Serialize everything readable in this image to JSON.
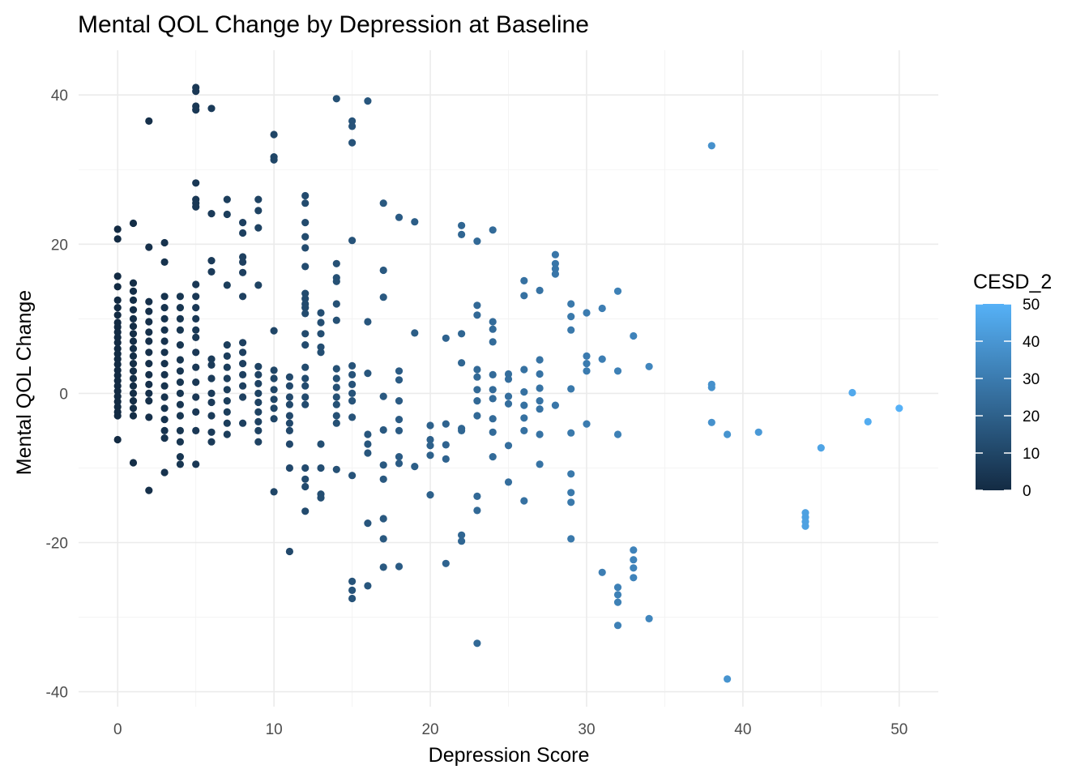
{
  "chart_data": {
    "type": "scatter",
    "title": "Mental QOL Change by Depression at Baseline",
    "xlabel": "Depression Score",
    "ylabel": "Mental QOL Change",
    "xlim": [
      -2.5,
      52.5
    ],
    "ylim": [
      -42,
      46
    ],
    "x_ticks": [
      0,
      10,
      20,
      30,
      40,
      50
    ],
    "x_tick_labels": [
      "0",
      "10",
      "20",
      "30",
      "40",
      "50"
    ],
    "y_ticks": [
      -40,
      -20,
      0,
      20,
      40
    ],
    "y_tick_labels": [
      "-40",
      "-20",
      "0",
      "20",
      "40"
    ],
    "grid": true,
    "legend": {
      "title": "CESD_2",
      "position": "right",
      "type": "colorbar",
      "range": [
        0,
        50
      ],
      "ticks": [
        0,
        10,
        20,
        30,
        40,
        50
      ],
      "tick_labels": [
        "0",
        "10",
        "20",
        "30",
        "40",
        "50"
      ],
      "color_low": "#132B43",
      "color_high": "#56B1F7"
    },
    "color_variable": "CESD_2",
    "points": [
      [
        0,
        22.0
      ],
      [
        0,
        20.7
      ],
      [
        0,
        15.7
      ],
      [
        0,
        14.3
      ],
      [
        0,
        12.5
      ],
      [
        0,
        11.5
      ],
      [
        0,
        10.5
      ],
      [
        0,
        9.5
      ],
      [
        0,
        8.9
      ],
      [
        0,
        8.2
      ],
      [
        0,
        7.5
      ],
      [
        0,
        6.8
      ],
      [
        0,
        6.0
      ],
      [
        0,
        5.3
      ],
      [
        0,
        4.6
      ],
      [
        0,
        3.9
      ],
      [
        0,
        3.1
      ],
      [
        0,
        2.4
      ],
      [
        0,
        1.7
      ],
      [
        0,
        1.0
      ],
      [
        0,
        0.3
      ],
      [
        0,
        -0.4
      ],
      [
        0,
        -1.1
      ],
      [
        0,
        -1.8
      ],
      [
        0,
        -2.5
      ],
      [
        0,
        -3.0
      ],
      [
        0,
        -6.2
      ],
      [
        1,
        22.8
      ],
      [
        1,
        14.8
      ],
      [
        1,
        13.7
      ],
      [
        1,
        12.5
      ],
      [
        1,
        11.2
      ],
      [
        1,
        10.0
      ],
      [
        1,
        9.0
      ],
      [
        1,
        8.0
      ],
      [
        1,
        7.0
      ],
      [
        1,
        6.0
      ],
      [
        1,
        5.0
      ],
      [
        1,
        4.0
      ],
      [
        1,
        3.0
      ],
      [
        1,
        2.0
      ],
      [
        1,
        1.0
      ],
      [
        1,
        0.0
      ],
      [
        1,
        -1.0
      ],
      [
        1,
        -2.0
      ],
      [
        1,
        -3.0
      ],
      [
        1,
        -9.3
      ],
      [
        2,
        36.5
      ],
      [
        2,
        19.6
      ],
      [
        2,
        12.3
      ],
      [
        2,
        11.0
      ],
      [
        2,
        9.6
      ],
      [
        2,
        8.2
      ],
      [
        2,
        7.0
      ],
      [
        2,
        5.5
      ],
      [
        2,
        4.0
      ],
      [
        2,
        2.5
      ],
      [
        2,
        1.2
      ],
      [
        2,
        0.0
      ],
      [
        2,
        -1.0
      ],
      [
        2,
        -3.2
      ],
      [
        2,
        -13.0
      ],
      [
        3,
        20.2
      ],
      [
        3,
        17.6
      ],
      [
        3,
        13.0
      ],
      [
        3,
        11.5
      ],
      [
        3,
        10.0
      ],
      [
        3,
        8.5
      ],
      [
        3,
        7.0
      ],
      [
        3,
        5.5
      ],
      [
        3,
        4.0
      ],
      [
        3,
        2.5
      ],
      [
        3,
        1.0
      ],
      [
        3,
        -0.5
      ],
      [
        3,
        -2.0
      ],
      [
        3,
        -3.5
      ],
      [
        3,
        -5.0
      ],
      [
        3,
        -6.0
      ],
      [
        3,
        -10.6
      ],
      [
        4,
        13.0
      ],
      [
        4,
        11.5
      ],
      [
        4,
        10.0
      ],
      [
        4,
        8.5
      ],
      [
        4,
        6.5
      ],
      [
        4,
        4.5
      ],
      [
        4,
        3.0
      ],
      [
        4,
        1.5
      ],
      [
        4,
        0.0
      ],
      [
        4,
        -1.5
      ],
      [
        4,
        -3.0
      ],
      [
        4,
        -5.0
      ],
      [
        4,
        -6.5
      ],
      [
        4,
        -8.5
      ],
      [
        4,
        -9.5
      ],
      [
        5,
        41.0
      ],
      [
        5,
        40.5
      ],
      [
        5,
        38.5
      ],
      [
        5,
        38.0
      ],
      [
        5,
        28.2
      ],
      [
        5,
        26.0
      ],
      [
        5,
        25.5
      ],
      [
        5,
        25.0
      ],
      [
        5,
        14.6
      ],
      [
        5,
        13.0
      ],
      [
        5,
        11.5
      ],
      [
        5,
        10.0
      ],
      [
        5,
        8.5
      ],
      [
        5,
        7.5
      ],
      [
        5,
        5.5
      ],
      [
        5,
        3.5
      ],
      [
        5,
        1.5
      ],
      [
        5,
        -0.5
      ],
      [
        5,
        -2.5
      ],
      [
        5,
        -5.0
      ],
      [
        5,
        -9.5
      ],
      [
        6,
        38.2
      ],
      [
        6,
        24.1
      ],
      [
        6,
        17.8
      ],
      [
        6,
        16.3
      ],
      [
        6,
        4.6
      ],
      [
        6,
        3.8
      ],
      [
        6,
        2.0
      ],
      [
        6,
        0.0
      ],
      [
        6,
        -1.2
      ],
      [
        6,
        -3.0
      ],
      [
        6,
        -5.2
      ],
      [
        6,
        -6.5
      ],
      [
        7,
        26.0
      ],
      [
        7,
        24.0
      ],
      [
        7,
        14.5
      ],
      [
        7,
        6.5
      ],
      [
        7,
        5.0
      ],
      [
        7,
        3.5
      ],
      [
        7,
        2.0
      ],
      [
        7,
        0.5
      ],
      [
        7,
        -1.0
      ],
      [
        7,
        -2.5
      ],
      [
        7,
        -4.0
      ],
      [
        7,
        -5.5
      ],
      [
        8,
        22.9
      ],
      [
        8,
        21.5
      ],
      [
        8,
        18.3
      ],
      [
        8,
        17.6
      ],
      [
        8,
        16.2
      ],
      [
        8,
        13.0
      ],
      [
        8,
        6.8
      ],
      [
        8,
        5.5
      ],
      [
        8,
        4.0
      ],
      [
        8,
        2.5
      ],
      [
        8,
        1.0
      ],
      [
        8,
        -0.5
      ],
      [
        8,
        -4.0
      ],
      [
        9,
        26.0
      ],
      [
        9,
        24.5
      ],
      [
        9,
        22.2
      ],
      [
        9,
        14.5
      ],
      [
        9,
        3.6
      ],
      [
        9,
        2.5
      ],
      [
        9,
        1.3
      ],
      [
        9,
        0.0
      ],
      [
        9,
        -1.2
      ],
      [
        9,
        -2.5
      ],
      [
        9,
        -3.8
      ],
      [
        9,
        -5.0
      ],
      [
        9,
        -6.5
      ],
      [
        10,
        34.7
      ],
      [
        10,
        31.7
      ],
      [
        10,
        31.3
      ],
      [
        10,
        8.4
      ],
      [
        10,
        3.1
      ],
      [
        10,
        2.0
      ],
      [
        10,
        0.5
      ],
      [
        10,
        -0.8
      ],
      [
        10,
        -2.0
      ],
      [
        10,
        -3.4
      ],
      [
        10,
        -13.2
      ],
      [
        11,
        2.2
      ],
      [
        11,
        1.0
      ],
      [
        11,
        -0.5
      ],
      [
        11,
        -1.5
      ],
      [
        11,
        -3.0
      ],
      [
        11,
        -4.0
      ],
      [
        11,
        -5.0
      ],
      [
        11,
        -6.8
      ],
      [
        11,
        -10.0
      ],
      [
        11,
        -21.2
      ],
      [
        12,
        26.5
      ],
      [
        12,
        25.5
      ],
      [
        12,
        22.9
      ],
      [
        12,
        21.0
      ],
      [
        12,
        19.5
      ],
      [
        12,
        17.0
      ],
      [
        12,
        13.4
      ],
      [
        12,
        12.7
      ],
      [
        12,
        12.0
      ],
      [
        12,
        11.5
      ],
      [
        12,
        10.7
      ],
      [
        12,
        8.0
      ],
      [
        12,
        6.5
      ],
      [
        12,
        3.5
      ],
      [
        12,
        2.0
      ],
      [
        12,
        1.0
      ],
      [
        12,
        -0.5
      ],
      [
        12,
        -1.5
      ],
      [
        12,
        -10.0
      ],
      [
        12,
        -11.5
      ],
      [
        12,
        -12.5
      ],
      [
        12,
        -15.8
      ],
      [
        13,
        10.8
      ],
      [
        13,
        9.5
      ],
      [
        13,
        8.0
      ],
      [
        13,
        6.2
      ],
      [
        13,
        5.5
      ],
      [
        13,
        -6.8
      ],
      [
        13,
        -10.0
      ],
      [
        13,
        -13.5
      ],
      [
        13,
        -14.0
      ],
      [
        14,
        39.5
      ],
      [
        14,
        17.4
      ],
      [
        14,
        15.5
      ],
      [
        14,
        15.0
      ],
      [
        14,
        12.0
      ],
      [
        14,
        9.8
      ],
      [
        14,
        3.3
      ],
      [
        14,
        2.0
      ],
      [
        14,
        0.8
      ],
      [
        14,
        -0.5
      ],
      [
        14,
        -1.5
      ],
      [
        14,
        -3.0
      ],
      [
        14,
        -4.0
      ],
      [
        14,
        -10.2
      ],
      [
        15,
        36.5
      ],
      [
        15,
        35.8
      ],
      [
        15,
        33.6
      ],
      [
        15,
        20.5
      ],
      [
        15,
        3.7
      ],
      [
        15,
        2.5
      ],
      [
        15,
        1.2
      ],
      [
        15,
        0.0
      ],
      [
        15,
        -1.0
      ],
      [
        15,
        -3.2
      ],
      [
        15,
        -11.0
      ],
      [
        15,
        -25.2
      ],
      [
        15,
        -26.4
      ],
      [
        15,
        -27.5
      ],
      [
        16,
        39.2
      ],
      [
        16,
        9.6
      ],
      [
        16,
        2.7
      ],
      [
        16,
        -5.5
      ],
      [
        16,
        -6.8
      ],
      [
        16,
        -8.0
      ],
      [
        16,
        -17.4
      ],
      [
        16,
        -25.8
      ],
      [
        17,
        25.5
      ],
      [
        17,
        16.5
      ],
      [
        17,
        12.9
      ],
      [
        17,
        -0.4
      ],
      [
        17,
        -4.9
      ],
      [
        17,
        -9.6
      ],
      [
        17,
        -11.5
      ],
      [
        17,
        -16.8
      ],
      [
        17,
        -19.5
      ],
      [
        17,
        -23.3
      ],
      [
        18,
        23.6
      ],
      [
        18,
        3.0
      ],
      [
        18,
        1.8
      ],
      [
        18,
        -1.0
      ],
      [
        18,
        -3.5
      ],
      [
        18,
        -5.0
      ],
      [
        18,
        -8.5
      ],
      [
        18,
        -9.4
      ],
      [
        18,
        -23.2
      ],
      [
        19,
        23.0
      ],
      [
        19,
        8.1
      ],
      [
        19,
        -9.8
      ],
      [
        20,
        -4.3
      ],
      [
        20,
        -6.2
      ],
      [
        20,
        -7.0
      ],
      [
        20,
        -8.3
      ],
      [
        20,
        -13.6
      ],
      [
        21,
        7.4
      ],
      [
        21,
        -4.1
      ],
      [
        21,
        -6.9
      ],
      [
        21,
        -8.8
      ],
      [
        21,
        -22.8
      ],
      [
        22,
        22.5
      ],
      [
        22,
        21.3
      ],
      [
        22,
        8.0
      ],
      [
        22,
        4.1
      ],
      [
        22,
        -4.7
      ],
      [
        22,
        -5.0
      ],
      [
        22,
        -19.0
      ],
      [
        22,
        -19.8
      ],
      [
        23,
        20.4
      ],
      [
        23,
        11.8
      ],
      [
        23,
        10.5
      ],
      [
        23,
        3.2
      ],
      [
        23,
        2.2
      ],
      [
        23,
        0.5
      ],
      [
        23,
        -1.0
      ],
      [
        23,
        -3.0
      ],
      [
        23,
        -13.8
      ],
      [
        23,
        -15.7
      ],
      [
        23,
        -33.5
      ],
      [
        24,
        21.9
      ],
      [
        24,
        9.6
      ],
      [
        24,
        8.6
      ],
      [
        24,
        6.9
      ],
      [
        24,
        2.5
      ],
      [
        24,
        0.5
      ],
      [
        24,
        -0.7
      ],
      [
        24,
        -3.4
      ],
      [
        24,
        -5.2
      ],
      [
        24,
        -8.5
      ],
      [
        25,
        2.6
      ],
      [
        25,
        1.9
      ],
      [
        25,
        -0.4
      ],
      [
        25,
        -1.4
      ],
      [
        25,
        -7.0
      ],
      [
        25,
        -11.9
      ],
      [
        26,
        15.1
      ],
      [
        26,
        13.1
      ],
      [
        26,
        3.2
      ],
      [
        26,
        0.2
      ],
      [
        26,
        -1.6
      ],
      [
        26,
        -3.3
      ],
      [
        26,
        -5.0
      ],
      [
        26,
        -14.4
      ],
      [
        27,
        13.8
      ],
      [
        27,
        4.5
      ],
      [
        27,
        2.6
      ],
      [
        27,
        0.7
      ],
      [
        27,
        -1.0
      ],
      [
        27,
        -2.1
      ],
      [
        27,
        -5.5
      ],
      [
        27,
        -9.5
      ],
      [
        28,
        18.6
      ],
      [
        28,
        17.4
      ],
      [
        28,
        16.7
      ],
      [
        28,
        16.0
      ],
      [
        28,
        -1.6
      ],
      [
        29,
        12.0
      ],
      [
        29,
        10.3
      ],
      [
        29,
        8.5
      ],
      [
        29,
        0.6
      ],
      [
        29,
        -5.3
      ],
      [
        29,
        -10.8
      ],
      [
        29,
        -13.3
      ],
      [
        29,
        -14.6
      ],
      [
        29,
        -19.5
      ],
      [
        30,
        10.8
      ],
      [
        30,
        5.0
      ],
      [
        30,
        4.0
      ],
      [
        30,
        3.0
      ],
      [
        30,
        -4.1
      ],
      [
        31,
        11.4
      ],
      [
        31,
        4.6
      ],
      [
        31,
        -24.0
      ],
      [
        32,
        13.7
      ],
      [
        32,
        3.0
      ],
      [
        32,
        -5.5
      ],
      [
        32,
        -26.0
      ],
      [
        32,
        -27.0
      ],
      [
        32,
        -28.0
      ],
      [
        32,
        -31.1
      ],
      [
        33,
        7.7
      ],
      [
        33,
        -21.0
      ],
      [
        33,
        -22.3
      ],
      [
        33,
        -23.4
      ],
      [
        33,
        -24.7
      ],
      [
        34,
        3.6
      ],
      [
        34,
        -30.2
      ],
      [
        38,
        33.2
      ],
      [
        38,
        1.2
      ],
      [
        38,
        0.8
      ],
      [
        38,
        -3.9
      ],
      [
        39,
        -5.5
      ],
      [
        39,
        -38.3
      ],
      [
        41,
        -5.2
      ],
      [
        44,
        -16.0
      ],
      [
        44,
        -16.6
      ],
      [
        44,
        -17.2
      ],
      [
        44,
        -17.8
      ],
      [
        45,
        -7.3
      ],
      [
        47,
        0.1
      ],
      [
        48,
        -3.8
      ],
      [
        50,
        -2.0
      ]
    ]
  }
}
